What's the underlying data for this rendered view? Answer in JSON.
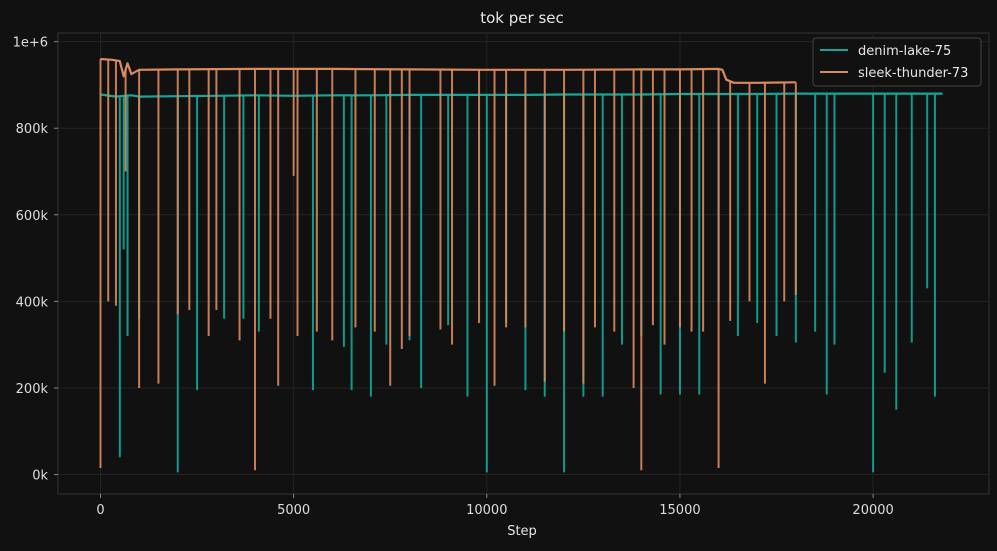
{
  "chart_data": {
    "type": "line",
    "title": "tok per sec",
    "xlabel": "Step",
    "ylabel": "",
    "xlim": [
      -1100,
      23000
    ],
    "ylim": [
      -45000,
      1020000
    ],
    "x_ticks": [
      0,
      5000,
      10000,
      15000,
      20000
    ],
    "x_tick_labels": [
      "0",
      "5000",
      "10000",
      "15000",
      "20000"
    ],
    "y_ticks": [
      0,
      200000,
      400000,
      600000,
      800000,
      1000000
    ],
    "y_tick_labels": [
      "0k",
      "200k",
      "400k",
      "600k",
      "800k",
      "1e+6"
    ],
    "grid": true,
    "legend_position": "top-right",
    "series": [
      {
        "name": "denim-lake-75",
        "color": "#14a89a",
        "x": [
          0,
          400,
          600,
          800,
          1000,
          2000,
          3000,
          4000,
          5000,
          6000,
          7000,
          8000,
          9000,
          10000,
          11000,
          12000,
          13000,
          14000,
          15000,
          16000,
          17000,
          18000,
          19000,
          20000,
          21000,
          21800
        ],
        "values": [
          878000,
          873000,
          875000,
          876000,
          873000,
          874000,
          875000,
          876000,
          875000,
          876000,
          876000,
          877000,
          877000,
          877000,
          877000,
          878000,
          878000,
          878000,
          879000,
          879000,
          879000,
          880000,
          880000,
          880000,
          880000,
          880000
        ],
        "dips": [
          [
            500,
            40000
          ],
          [
            600,
            520000
          ],
          [
            700,
            320000
          ],
          [
            1000,
            360000
          ],
          [
            2000,
            5000
          ],
          [
            2500,
            195000
          ],
          [
            3200,
            360000
          ],
          [
            3700,
            360000
          ],
          [
            4100,
            330000
          ],
          [
            5500,
            195000
          ],
          [
            6300,
            295000
          ],
          [
            6500,
            195000
          ],
          [
            7000,
            180000
          ],
          [
            7400,
            300000
          ],
          [
            8000,
            310000
          ],
          [
            8300,
            200000
          ],
          [
            9000,
            345000
          ],
          [
            9500,
            180000
          ],
          [
            10000,
            5000
          ],
          [
            10500,
            350000
          ],
          [
            11000,
            195000
          ],
          [
            11500,
            180000
          ],
          [
            12000,
            5000
          ],
          [
            12500,
            180000
          ],
          [
            13000,
            180000
          ],
          [
            13500,
            300000
          ],
          [
            14000,
            320000
          ],
          [
            14500,
            185000
          ],
          [
            15000,
            185000
          ],
          [
            15500,
            185000
          ],
          [
            16000,
            400000
          ],
          [
            16500,
            320000
          ],
          [
            17000,
            350000
          ],
          [
            17500,
            320000
          ],
          [
            18000,
            305000
          ],
          [
            18500,
            330000
          ],
          [
            18800,
            185000
          ],
          [
            19000,
            300000
          ],
          [
            20000,
            5000
          ],
          [
            20300,
            235000
          ],
          [
            20600,
            150000
          ],
          [
            21000,
            305000
          ],
          [
            21400,
            430000
          ],
          [
            21600,
            180000
          ]
        ]
      },
      {
        "name": "sleek-thunder-73",
        "color": "#d98a5e",
        "x": [
          0,
          300,
          500,
          600,
          700,
          800,
          1000,
          2000,
          4000,
          6000,
          8000,
          10000,
          12000,
          14000,
          15000,
          16000,
          16100,
          16200,
          16400,
          17000,
          18000
        ],
        "values": [
          960000,
          958000,
          955000,
          920000,
          950000,
          925000,
          935000,
          936000,
          937000,
          937000,
          936000,
          935000,
          935000,
          936000,
          936000,
          937000,
          935000,
          912000,
          905000,
          905000,
          906000
        ],
        "dips": [
          [
            0,
            15000
          ],
          [
            200,
            400000
          ],
          [
            400,
            390000
          ],
          [
            650,
            700000
          ],
          [
            1000,
            200000
          ],
          [
            1500,
            210000
          ],
          [
            2000,
            370000
          ],
          [
            2300,
            380000
          ],
          [
            2800,
            320000
          ],
          [
            3000,
            380000
          ],
          [
            3600,
            310000
          ],
          [
            4000,
            10000
          ],
          [
            4400,
            360000
          ],
          [
            4600,
            205000
          ],
          [
            5000,
            690000
          ],
          [
            5100,
            320000
          ],
          [
            5600,
            330000
          ],
          [
            6000,
            310000
          ],
          [
            6600,
            340000
          ],
          [
            7100,
            330000
          ],
          [
            7500,
            205000
          ],
          [
            7800,
            290000
          ],
          [
            8000,
            320000
          ],
          [
            8800,
            335000
          ],
          [
            9100,
            300000
          ],
          [
            9800,
            350000
          ],
          [
            10200,
            205000
          ],
          [
            10500,
            340000
          ],
          [
            11000,
            340000
          ],
          [
            11500,
            215000
          ],
          [
            12000,
            330000
          ],
          [
            12500,
            210000
          ],
          [
            12800,
            340000
          ],
          [
            13300,
            330000
          ],
          [
            13800,
            200000
          ],
          [
            14000,
            10000
          ],
          [
            14300,
            345000
          ],
          [
            14600,
            300000
          ],
          [
            15000,
            340000
          ],
          [
            15300,
            330000
          ],
          [
            15600,
            330000
          ],
          [
            16000,
            15000
          ],
          [
            16300,
            355000
          ],
          [
            16800,
            400000
          ],
          [
            17200,
            210000
          ],
          [
            17700,
            400000
          ],
          [
            18000,
            415000
          ]
        ]
      }
    ]
  }
}
